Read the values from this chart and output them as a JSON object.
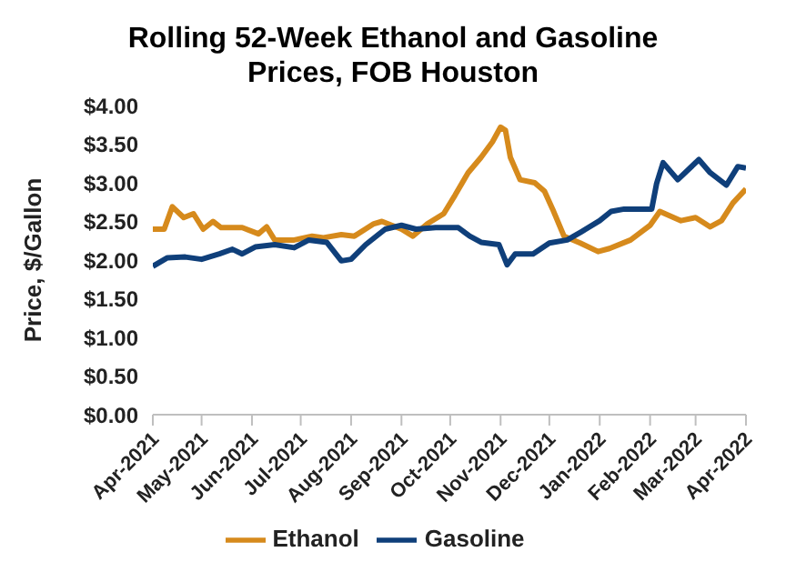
{
  "chart_data": {
    "type": "line",
    "title": "Rolling 52-Week Ethanol and Gasoline Prices, FOB Houston",
    "ylabel": "Price, $/Gallon",
    "ylim": [
      0,
      4
    ],
    "yticks": [
      {
        "value": 0,
        "label": "$0.00"
      },
      {
        "value": 0.5,
        "label": "$0.50"
      },
      {
        "value": 1,
        "label": "$1.00"
      },
      {
        "value": 1.5,
        "label": "$1.50"
      },
      {
        "value": 2,
        "label": "$2.00"
      },
      {
        "value": 2.5,
        "label": "$2.50"
      },
      {
        "value": 3,
        "label": "$3.00"
      },
      {
        "value": 3.5,
        "label": "$3.50"
      },
      {
        "value": 4,
        "label": "$4.00"
      }
    ],
    "xlim": [
      "2021-04-01",
      "2022-04-01"
    ],
    "xticks": [
      {
        "value": "2021-04-01",
        "label": "Apr-2021"
      },
      {
        "value": "2021-05-01",
        "label": "May-2021"
      },
      {
        "value": "2021-06-01",
        "label": "Jun-2021"
      },
      {
        "value": "2021-07-01",
        "label": "Jul-2021"
      },
      {
        "value": "2021-08-01",
        "label": "Aug-2021"
      },
      {
        "value": "2021-09-01",
        "label": "Sep-2021"
      },
      {
        "value": "2021-10-01",
        "label": "Oct-2021"
      },
      {
        "value": "2021-11-01",
        "label": "Nov-2021"
      },
      {
        "value": "2021-12-01",
        "label": "Dec-2021"
      },
      {
        "value": "2022-01-01",
        "label": "Jan-2022"
      },
      {
        "value": "2022-02-01",
        "label": "Feb-2022"
      },
      {
        "value": "2022-03-01",
        "label": "Mar-2022"
      },
      {
        "value": "2022-04-01",
        "label": "Apr-2022"
      }
    ],
    "grid": false,
    "legend": "bottom",
    "marker": "none",
    "line_style": "solid",
    "series": [
      {
        "name": "Ethanol",
        "color": "#d68a1c",
        "x": [
          "2021-04-01",
          "2021-04-08",
          "2021-04-13",
          "2021-04-20",
          "2021-04-26",
          "2021-05-02",
          "2021-05-08",
          "2021-05-13",
          "2021-05-26",
          "2021-06-05",
          "2021-06-10",
          "2021-06-15",
          "2021-06-27",
          "2021-07-08",
          "2021-07-15",
          "2021-07-26",
          "2021-08-03",
          "2021-08-15",
          "2021-08-20",
          "2021-09-01",
          "2021-09-08",
          "2021-09-17",
          "2021-09-27",
          "2021-10-04",
          "2021-10-12",
          "2021-10-20",
          "2021-10-27",
          "2021-11-01",
          "2021-11-04",
          "2021-11-07",
          "2021-11-13",
          "2021-11-22",
          "2021-11-28",
          "2021-12-03",
          "2021-12-10",
          "2021-12-20",
          "2021-12-31",
          "2022-01-07",
          "2022-01-20",
          "2022-02-01",
          "2022-02-07",
          "2022-02-20",
          "2022-03-01",
          "2022-03-10",
          "2022-03-17",
          "2022-03-24",
          "2022-04-01"
        ],
        "values": [
          2.4,
          2.4,
          2.69,
          2.55,
          2.6,
          2.4,
          2.5,
          2.42,
          2.42,
          2.34,
          2.43,
          2.26,
          2.26,
          2.31,
          2.29,
          2.33,
          2.31,
          2.47,
          2.5,
          2.4,
          2.31,
          2.47,
          2.6,
          2.84,
          3.13,
          3.33,
          3.53,
          3.72,
          3.68,
          3.33,
          3.04,
          3.0,
          2.89,
          2.66,
          2.31,
          2.22,
          2.11,
          2.15,
          2.26,
          2.45,
          2.63,
          2.51,
          2.55,
          2.43,
          2.51,
          2.74,
          2.92
        ]
      },
      {
        "name": "Gasoline",
        "color": "#0f3f7a",
        "x": [
          "2021-04-01",
          "2021-04-10",
          "2021-04-21",
          "2021-05-01",
          "2021-05-12",
          "2021-05-20",
          "2021-05-26",
          "2021-06-03",
          "2021-06-15",
          "2021-06-27",
          "2021-07-06",
          "2021-07-17",
          "2021-07-26",
          "2021-08-01",
          "2021-08-10",
          "2021-08-22",
          "2021-09-01",
          "2021-09-10",
          "2021-09-22",
          "2021-10-06",
          "2021-10-13",
          "2021-10-20",
          "2021-10-31",
          "2021-11-05",
          "2021-11-10",
          "2021-11-21",
          "2021-12-01",
          "2021-12-12",
          "2021-12-21",
          "2022-01-01",
          "2022-01-08",
          "2022-01-16",
          "2022-02-02",
          "2022-02-05",
          "2022-02-09",
          "2022-02-18",
          "2022-03-03",
          "2022-03-10",
          "2022-03-20",
          "2022-03-27",
          "2022-04-01"
        ],
        "values": [
          1.92,
          2.03,
          2.04,
          2.01,
          2.08,
          2.14,
          2.08,
          2.17,
          2.2,
          2.16,
          2.26,
          2.23,
          1.99,
          2.01,
          2.2,
          2.4,
          2.45,
          2.4,
          2.42,
          2.42,
          2.31,
          2.23,
          2.2,
          1.94,
          2.08,
          2.08,
          2.22,
          2.26,
          2.37,
          2.51,
          2.63,
          2.66,
          2.66,
          2.99,
          3.26,
          3.04,
          3.3,
          3.13,
          2.97,
          3.21,
          3.19
        ]
      }
    ]
  }
}
